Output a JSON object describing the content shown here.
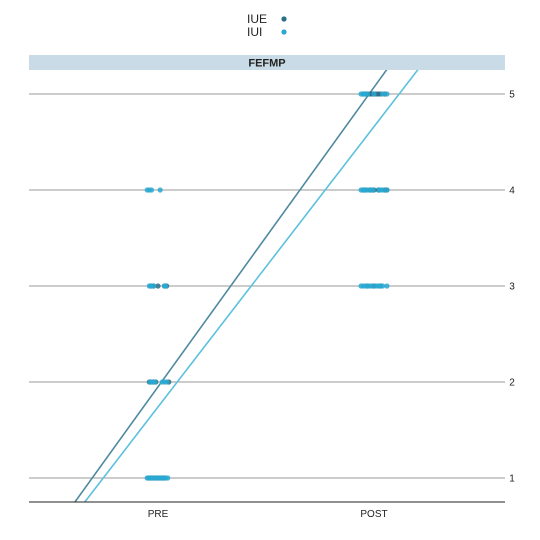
{
  "chart_data": {
    "type": "scatter",
    "panel_title": "FEFMP",
    "x_categories": [
      "PRE",
      "POST"
    ],
    "y_ticks": [
      1,
      2,
      3,
      4,
      5
    ],
    "ylim": [
      0.75,
      5.25
    ],
    "grid": "horizontal",
    "legend_position": "top",
    "series": [
      {
        "name": "IUE",
        "color": "#2b6f86",
        "points": [
          {
            "x": "PRE",
            "y": 1,
            "offsets": [
              -0.04,
              -0.03,
              -0.02,
              -0.01,
              0.0,
              0.01,
              0.02,
              0.03
            ]
          },
          {
            "x": "PRE",
            "y": 2,
            "offsets": [
              -0.04,
              -0.03,
              -0.02,
              -0.01,
              0.05
            ]
          },
          {
            "x": "PRE",
            "y": 3,
            "offsets": [
              -0.03,
              -0.02,
              0.0,
              0.03,
              0.04
            ]
          },
          {
            "x": "POST",
            "y": 3,
            "offsets": [
              -0.03,
              0.0,
              0.03
            ]
          },
          {
            "x": "POST",
            "y": 4,
            "offsets": [
              -0.05,
              -0.04,
              -0.02,
              -0.01,
              0.0,
              0.02,
              0.05,
              0.06
            ]
          },
          {
            "x": "POST",
            "y": 5,
            "offsets": [
              -0.05,
              -0.04,
              -0.03,
              -0.02,
              -0.01,
              0.0,
              0.01,
              0.02,
              0.03,
              0.05
            ]
          }
        ],
        "trend": {
          "intercept": -1.17,
          "slope": 3.12
        }
      },
      {
        "name": "IUI",
        "color": "#29a9d2",
        "points": [
          {
            "x": "PRE",
            "y": 1,
            "offsets": [
              -0.05,
              -0.045,
              -0.035,
              -0.025,
              -0.015,
              -0.005,
              0.005,
              0.015,
              0.025,
              0.035,
              0.045
            ]
          },
          {
            "x": "PRE",
            "y": 2,
            "offsets": [
              -0.035,
              -0.025,
              -0.015,
              0.02,
              0.03,
              0.04
            ]
          },
          {
            "x": "PRE",
            "y": 3,
            "offsets": [
              -0.04,
              -0.035,
              -0.02,
              0.03,
              0.035
            ]
          },
          {
            "x": "PRE",
            "y": 4,
            "offsets": [
              -0.05,
              -0.04,
              -0.03,
              0.01
            ]
          },
          {
            "x": "POST",
            "y": 3,
            "offsets": [
              -0.06,
              -0.05,
              -0.04,
              -0.03,
              -0.02,
              -0.01,
              0.01,
              0.02,
              0.03,
              0.04,
              0.06
            ]
          },
          {
            "x": "POST",
            "y": 4,
            "offsets": [
              -0.06,
              -0.05,
              -0.04,
              -0.03,
              -0.015,
              -0.005,
              0.025,
              0.03,
              0.04,
              0.06
            ]
          },
          {
            "x": "POST",
            "y": 5,
            "offsets": [
              -0.06,
              -0.05,
              -0.04,
              -0.03,
              0.0,
              0.04,
              0.06
            ]
          }
        ],
        "trend": {
          "intercept": -1.18,
          "slope": 2.92
        }
      }
    ]
  }
}
